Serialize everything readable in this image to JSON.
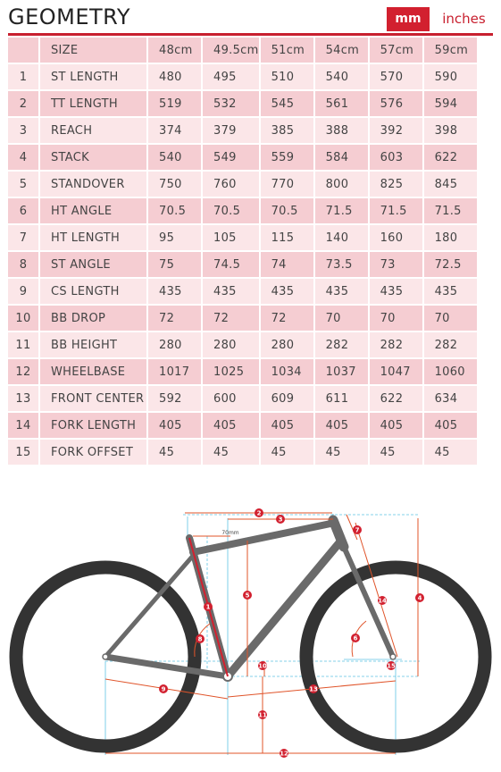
{
  "title": "GEOMETRY",
  "units": {
    "mm_label": "mm",
    "inches_label": "inches",
    "selected": "mm"
  },
  "columns": [
    "SIZE",
    "48cm",
    "49.5cm",
    "51cm",
    "54cm",
    "57cm",
    "59cm"
  ],
  "rows": [
    {
      "num": "1",
      "label": "ST LENGTH",
      "values": [
        "480",
        "495",
        "510",
        "540",
        "570",
        "590"
      ]
    },
    {
      "num": "2",
      "label": "TT LENGTH",
      "values": [
        "519",
        "532",
        "545",
        "561",
        "576",
        "594"
      ]
    },
    {
      "num": "3",
      "label": "REACH",
      "values": [
        "374",
        "379",
        "385",
        "388",
        "392",
        "398"
      ]
    },
    {
      "num": "4",
      "label": "STACK",
      "values": [
        "540",
        "549",
        "559",
        "584",
        "603",
        "622"
      ]
    },
    {
      "num": "5",
      "label": "STANDOVER",
      "values": [
        "750",
        "760",
        "770",
        "800",
        "825",
        "845"
      ]
    },
    {
      "num": "6",
      "label": "HT ANGLE",
      "values": [
        "70.5",
        "70.5",
        "70.5",
        "71.5",
        "71.5",
        "71.5"
      ]
    },
    {
      "num": "7",
      "label": "HT LENGTH",
      "values": [
        "95",
        "105",
        "115",
        "140",
        "160",
        "180"
      ]
    },
    {
      "num": "8",
      "label": "ST ANGLE",
      "values": [
        "75",
        "74.5",
        "74",
        "73.5",
        "73",
        "72.5"
      ]
    },
    {
      "num": "9",
      "label": "CS LENGTH",
      "values": [
        "435",
        "435",
        "435",
        "435",
        "435",
        "435"
      ]
    },
    {
      "num": "10",
      "label": "BB DROP",
      "values": [
        "72",
        "72",
        "72",
        "70",
        "70",
        "70"
      ]
    },
    {
      "num": "11",
      "label": "BB HEIGHT",
      "values": [
        "280",
        "280",
        "280",
        "282",
        "282",
        "282"
      ]
    },
    {
      "num": "12",
      "label": "WHEELBASE",
      "values": [
        "1017",
        "1025",
        "1034",
        "1037",
        "1047",
        "1060"
      ]
    },
    {
      "num": "13",
      "label": "FRONT CENTER",
      "values": [
        "592",
        "600",
        "609",
        "611",
        "622",
        "634"
      ]
    },
    {
      "num": "14",
      "label": "FORK LENGTH",
      "values": [
        "405",
        "405",
        "405",
        "405",
        "405",
        "405"
      ]
    },
    {
      "num": "15",
      "label": "FORK OFFSET",
      "values": [
        "45",
        "45",
        "45",
        "45",
        "45",
        "45"
      ]
    }
  ],
  "diagram": {
    "callouts": [
      "1",
      "2",
      "3",
      "4",
      "5",
      "6",
      "7",
      "8",
      "9",
      "10",
      "11",
      "12",
      "13",
      "14",
      "15"
    ],
    "seatpost_label": "70mm",
    "colors": {
      "accent": "#d2202f",
      "dimension": "#e0542a",
      "guide": "#5fc3e4",
      "frame": "#6a6a6a",
      "tire": "#333333"
    }
  }
}
